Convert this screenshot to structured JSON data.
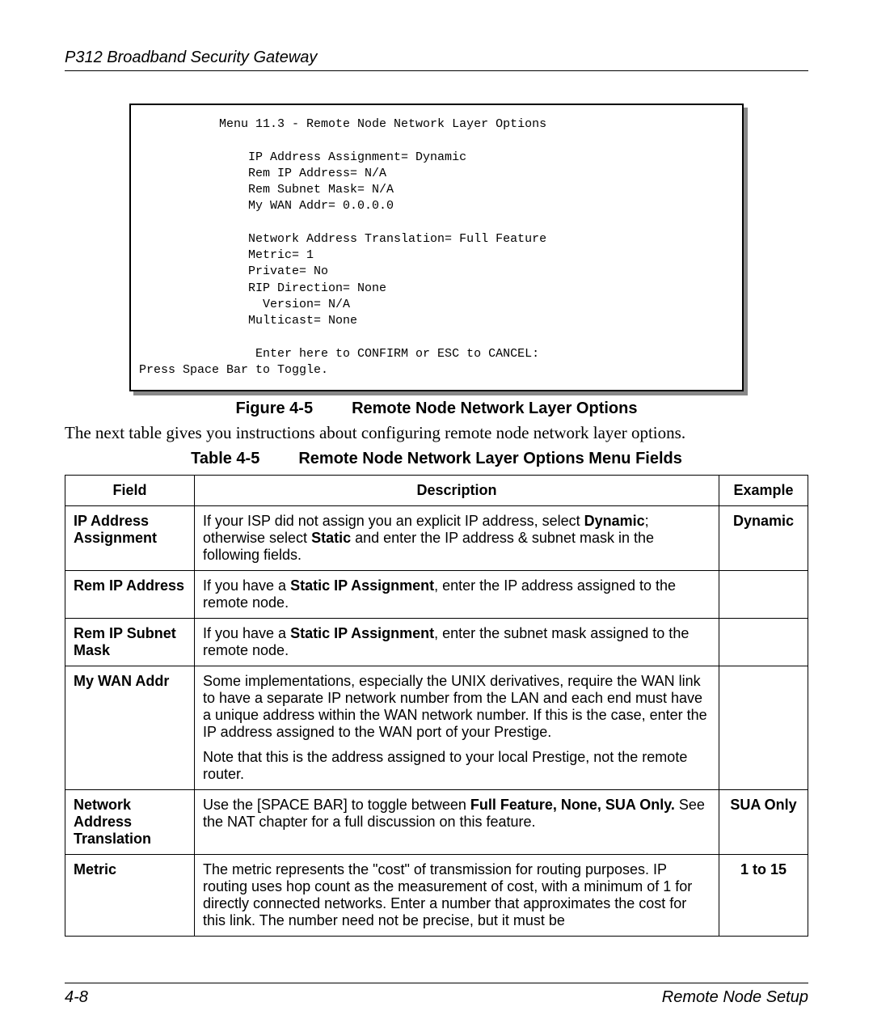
{
  "header": {
    "title": "P312  Broadband Security Gateway"
  },
  "terminal": {
    "lines": "           Menu 11.3 - Remote Node Network Layer Options\n\n               IP Address Assignment= Dynamic\n               Rem IP Address= N/A\n               Rem Subnet Mask= N/A\n               My WAN Addr= 0.0.0.0\n\n               Network Address Translation= Full Feature\n               Metric= 1\n               Private= No\n               RIP Direction= None\n                 Version= N/A\n               Multicast= None\n\n                Enter here to CONFIRM or ESC to CANCEL:\nPress Space Bar to Toggle."
  },
  "figure": {
    "num": "Figure 4-5",
    "title": "Remote Node Network Layer Options"
  },
  "lead": "The next table gives you instructions about configuring remote node network layer options.",
  "table_caption": {
    "num": "Table 4-5",
    "title": "Remote Node Network Layer Options Menu Fields"
  },
  "table": {
    "headers": {
      "field": "Field",
      "description": "Description",
      "example": "Example"
    },
    "rows": [
      {
        "field": "IP Address Assignment",
        "description_html": "If your ISP did not assign you an explicit IP address, select <b>Dynamic</b>; otherwise select <b>Static</b> and enter the IP address & subnet mask in the following fields.",
        "example": "Dynamic"
      },
      {
        "field": "Rem IP Address",
        "description_html": "If you have a <b>Static IP Assignment</b>, enter the IP address assigned to the remote node.",
        "example": ""
      },
      {
        "field": "Rem IP Subnet Mask",
        "description_html": "If you have a <b>Static IP Assignment</b>, enter the subnet mask assigned to the remote node.",
        "example": ""
      },
      {
        "field": "My WAN Addr",
        "description_html": "<p>Some implementations, especially the UNIX derivatives, require the WAN link to have a separate IP network number from the LAN and each end must have a unique address within the WAN network number. If this is the case, enter the IP address assigned to the WAN port of your Prestige.</p><p>Note that this is the address assigned to your local Prestige, not the remote router.</p>",
        "example": ""
      },
      {
        "field": "Network Address Translation",
        "description_html": "Use the [SPACE BAR] to toggle between <b>Full Feature, None, SUA Only.</b> See the NAT chapter for a full discussion on this feature.",
        "example": "SUA Only"
      },
      {
        "field": "Metric",
        "description_html": "The metric represents the \"cost\" of transmission for routing purposes. IP routing uses hop count as the measurement of cost, with a minimum of 1 for directly connected networks. Enter a number that approximates the cost for this link. The number need not be precise, but it must be",
        "example": "1 to 15"
      }
    ]
  },
  "footer": {
    "left": "4-8",
    "right": "Remote Node Setup"
  }
}
